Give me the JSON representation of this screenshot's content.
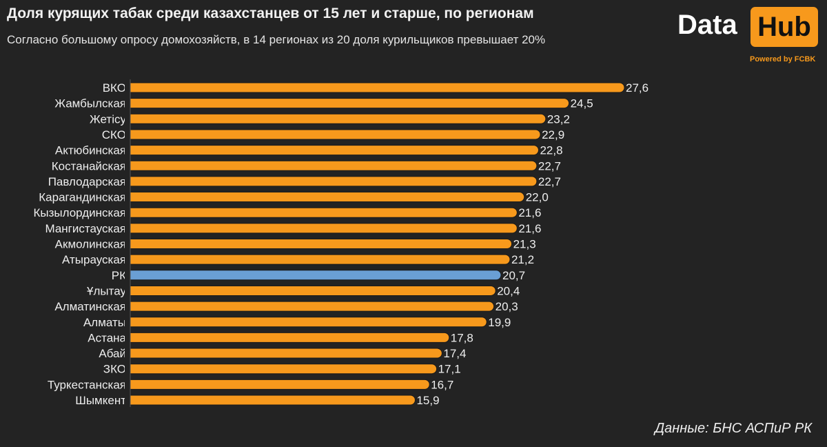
{
  "header": {
    "title": "Доля курящих табак среди казахстанцев от 15 лет и старше, по регионам",
    "subtitle": "Согласно большому опросу домохозяйств, в 14 регионах из 20 доля курильщиков превышает 20%"
  },
  "logo": {
    "data": "Data",
    "hub": "Hub",
    "powered": "Powered by FCBK"
  },
  "source": "Данные: БНС АСПиР РК",
  "colors": {
    "bar": "#f7991c",
    "highlight": "#6a9fd4",
    "background": "#232323"
  },
  "chart_data": {
    "type": "bar",
    "orientation": "horizontal",
    "categories": [
      "ВКО",
      "Жамбылская",
      "Жетісу",
      "СКО",
      "Актюбинская",
      "Костанайская",
      "Павлодарская",
      "Карагандинская",
      "Кызылординская",
      "Мангистауская",
      "Акмолинская",
      "Атырауская",
      "РК",
      "Ұлытау",
      "Алматинская",
      "Алматы",
      "Астана",
      "Абай",
      "ЗКО",
      "Туркестанская",
      "Шымкент"
    ],
    "values": [
      27.6,
      24.5,
      23.2,
      22.9,
      22.8,
      22.7,
      22.7,
      22.0,
      21.6,
      21.6,
      21.3,
      21.2,
      20.7,
      20.4,
      20.3,
      19.9,
      17.8,
      17.4,
      17.1,
      16.7,
      15.9
    ],
    "labels": [
      "27,6",
      "24,5",
      "23,2",
      "22,9",
      "22,8",
      "22,7",
      "22,7",
      "22,0",
      "21,6",
      "21,6",
      "21,3",
      "21,2",
      "20,7",
      "20,4",
      "20,3",
      "19,9",
      "17,8",
      "17,4",
      "17,1",
      "16,7",
      "15,9"
    ],
    "highlight": "РК",
    "xlim": [
      0,
      27.6
    ],
    "grid": false,
    "legend": "none"
  }
}
